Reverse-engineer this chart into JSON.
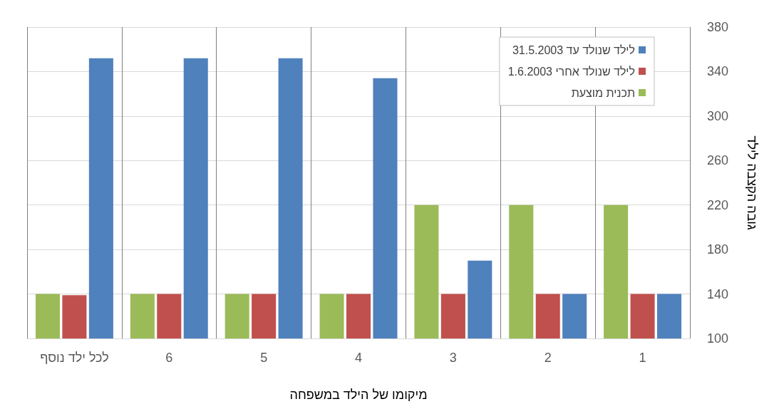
{
  "chart_data": {
    "type": "bar",
    "xlabel": "מיקומו של הילד במשפחה",
    "ylabel": "גובה הקצבה לילד",
    "categories": [
      "לכל ילד נוסף",
      "6",
      "5",
      "4",
      "3",
      "2",
      "1"
    ],
    "series": [
      {
        "name": "לילד שנולד עד 31.5.2003",
        "color": "#4f81bd",
        "values": [
          352,
          352,
          352,
          334,
          170,
          140,
          140
        ]
      },
      {
        "name": "לילד שנולד אחרי 1.6.2003",
        "color": "#c0504d",
        "values": [
          139,
          140,
          140,
          140,
          140,
          140,
          140
        ]
      },
      {
        "name": "תכנית מוצעת",
        "color": "#9bbb59",
        "values": [
          140,
          140,
          140,
          140,
          220,
          220,
          220
        ]
      }
    ],
    "ylim": [
      100,
      380
    ],
    "yticks": [
      100,
      140,
      180,
      220,
      260,
      300,
      340,
      380
    ],
    "grid": true,
    "legend": "top right"
  }
}
